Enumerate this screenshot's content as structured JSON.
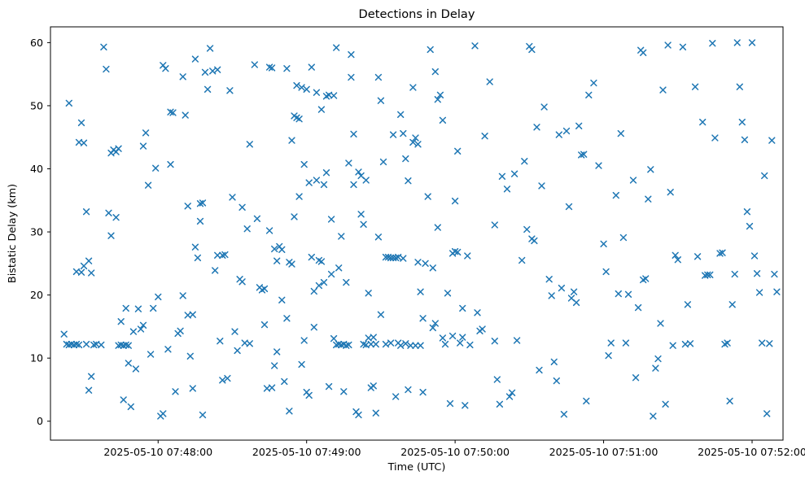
{
  "figure": {
    "background": "#ffffff"
  },
  "chart_data": {
    "type": "scatter",
    "title": "Detections in Delay",
    "xlabel": "Time (UTC)",
    "ylabel": "Bistatic Delay (km)",
    "marker": "x",
    "marker_color": "#1f77b4",
    "grid": false,
    "legend": null,
    "x_axis": {
      "unit": "seconds after 2025-05-10 07:47:00 UTC",
      "range_seconds": [
        16.5,
        312.5
      ],
      "tick_seconds": [
        60,
        120,
        180,
        240,
        300
      ],
      "tick_labels": [
        "2025-05-10 07:48:00",
        "2025-05-10 07:49:00",
        "2025-05-10 07:50:00",
        "2025-05-10 07:51:00",
        "2025-05-10 07:52:00"
      ]
    },
    "y_axis": {
      "ticks": [
        0,
        10,
        20,
        30,
        40,
        50,
        60
      ],
      "tick_labels": [
        "0",
        "10",
        "20",
        "30",
        "40",
        "50",
        "60"
      ],
      "range": [
        -3,
        62.5
      ]
    },
    "points": [
      [
        22,
        13.8
      ],
      [
        23,
        12.2
      ],
      [
        24,
        50.4
      ],
      [
        24,
        12.1
      ],
      [
        25,
        12.2
      ],
      [
        26,
        12.1
      ],
      [
        27,
        12.2
      ],
      [
        27,
        23.7
      ],
      [
        28,
        44.2
      ],
      [
        28,
        12.1
      ],
      [
        29,
        47.3
      ],
      [
        29,
        23.6
      ],
      [
        30,
        44.1
      ],
      [
        30,
        24.6
      ],
      [
        31,
        33.2
      ],
      [
        31,
        12.2
      ],
      [
        32,
        25.4
      ],
      [
        32,
        4.9
      ],
      [
        33,
        23.5
      ],
      [
        33,
        7.1
      ],
      [
        34,
        12.1
      ],
      [
        35,
        12.2
      ],
      [
        37,
        12.1
      ],
      [
        38,
        59.3
      ],
      [
        39,
        55.8
      ],
      [
        40,
        33.0
      ],
      [
        41,
        29.4
      ],
      [
        41,
        42.5
      ],
      [
        42,
        43.0
      ],
      [
        43,
        42.7
      ],
      [
        43,
        32.3
      ],
      [
        44,
        12.0
      ],
      [
        44,
        43.2
      ],
      [
        45,
        12.1
      ],
      [
        45,
        15.8
      ],
      [
        46,
        12.0
      ],
      [
        46,
        3.4
      ],
      [
        47,
        17.9
      ],
      [
        47,
        12.1
      ],
      [
        48,
        9.2
      ],
      [
        48,
        12.0
      ],
      [
        49,
        2.3
      ],
      [
        50,
        14.2
      ],
      [
        51,
        8.3
      ],
      [
        52,
        17.8
      ],
      [
        53,
        14.6
      ],
      [
        54,
        15.2
      ],
      [
        54,
        43.6
      ],
      [
        55,
        45.7
      ],
      [
        56,
        37.4
      ],
      [
        57,
        10.6
      ],
      [
        58,
        17.9
      ],
      [
        59,
        40.1
      ],
      [
        60,
        19.7
      ],
      [
        61,
        0.8
      ],
      [
        62,
        56.4
      ],
      [
        62,
        1.2
      ],
      [
        63,
        55.9
      ],
      [
        64,
        11.4
      ],
      [
        65,
        49.0
      ],
      [
        65,
        40.7
      ],
      [
        66,
        48.9
      ],
      [
        67,
        4.7
      ],
      [
        68,
        13.9
      ],
      [
        69,
        14.3
      ],
      [
        70,
        54.6
      ],
      [
        70,
        19.9
      ],
      [
        71,
        48.5
      ],
      [
        72,
        34.1
      ],
      [
        72,
        16.8
      ],
      [
        73,
        10.3
      ],
      [
        74,
        16.9
      ],
      [
        74,
        5.2
      ],
      [
        75,
        57.4
      ],
      [
        75,
        27.6
      ],
      [
        76,
        25.9
      ],
      [
        77,
        34.5
      ],
      [
        77,
        31.7
      ],
      [
        78,
        34.6
      ],
      [
        78,
        1.0
      ],
      [
        79,
        55.3
      ],
      [
        80,
        52.6
      ],
      [
        81,
        59.1
      ],
      [
        82,
        55.5
      ],
      [
        83,
        23.9
      ],
      [
        84,
        55.7
      ],
      [
        84,
        26.3
      ],
      [
        85,
        12.7
      ],
      [
        86,
        26.3
      ],
      [
        86,
        6.5
      ],
      [
        87,
        26.4
      ],
      [
        88,
        6.8
      ],
      [
        89,
        52.4
      ],
      [
        90,
        35.5
      ],
      [
        91,
        14.2
      ],
      [
        92,
        11.2
      ],
      [
        93,
        22.5
      ],
      [
        94,
        22.1
      ],
      [
        94,
        33.9
      ],
      [
        95,
        12.4
      ],
      [
        96,
        30.5
      ],
      [
        97,
        43.9
      ],
      [
        97,
        12.3
      ],
      [
        99,
        56.5
      ],
      [
        100,
        32.1
      ],
      [
        101,
        21.2
      ],
      [
        102,
        20.8
      ],
      [
        103,
        21.0
      ],
      [
        103,
        15.3
      ],
      [
        104,
        5.2
      ],
      [
        105,
        30.2
      ],
      [
        105,
        56.1
      ],
      [
        106,
        5.3
      ],
      [
        106,
        56.0
      ],
      [
        107,
        8.8
      ],
      [
        107,
        27.3
      ],
      [
        108,
        25.4
      ],
      [
        108,
        11.0
      ],
      [
        109,
        27.7
      ],
      [
        110,
        27.2
      ],
      [
        110,
        19.2
      ],
      [
        111,
        6.3
      ],
      [
        112,
        16.3
      ],
      [
        112,
        55.9
      ],
      [
        113,
        25.2
      ],
      [
        113,
        1.6
      ],
      [
        114,
        24.9
      ],
      [
        114,
        44.5
      ],
      [
        115,
        48.4
      ],
      [
        115,
        32.4
      ],
      [
        116,
        48.1
      ],
      [
        116,
        53.2
      ],
      [
        117,
        47.9
      ],
      [
        117,
        35.6
      ],
      [
        118,
        9.0
      ],
      [
        118,
        52.9
      ],
      [
        119,
        40.7
      ],
      [
        119,
        12.8
      ],
      [
        120,
        52.6
      ],
      [
        120,
        4.6
      ],
      [
        121,
        4.1
      ],
      [
        121,
        37.8
      ],
      [
        122,
        56.1
      ],
      [
        122,
        26.0
      ],
      [
        123,
        14.9
      ],
      [
        123,
        20.6
      ],
      [
        124,
        38.2
      ],
      [
        124,
        52.1
      ],
      [
        125,
        25.5
      ],
      [
        125,
        21.5
      ],
      [
        126,
        25.3
      ],
      [
        126,
        49.4
      ],
      [
        127,
        22.0
      ],
      [
        127,
        37.5
      ],
      [
        128,
        39.4
      ],
      [
        128,
        51.5
      ],
      [
        129,
        5.5
      ],
      [
        129,
        51.7
      ],
      [
        130,
        23.3
      ],
      [
        130,
        32.0
      ],
      [
        131,
        51.6
      ],
      [
        131,
        13.1
      ],
      [
        132,
        59.2
      ],
      [
        132,
        12.1
      ],
      [
        133,
        24.3
      ],
      [
        133,
        12.2
      ],
      [
        134,
        29.3
      ],
      [
        134,
        12.1
      ],
      [
        135,
        4.7
      ],
      [
        135,
        12.2
      ],
      [
        136,
        22.0
      ],
      [
        136,
        12.0
      ],
      [
        137,
        40.9
      ],
      [
        137,
        12.1
      ],
      [
        138,
        58.1
      ],
      [
        138,
        54.5
      ],
      [
        139,
        37.5
      ],
      [
        139,
        45.5
      ],
      [
        140,
        1.5
      ],
      [
        141,
        39.5
      ],
      [
        141,
        1.0
      ],
      [
        142,
        38.9
      ],
      [
        142,
        32.8
      ],
      [
        143,
        31.2
      ],
      [
        143,
        12.2
      ],
      [
        144,
        38.2
      ],
      [
        144,
        12.1
      ],
      [
        145,
        20.3
      ],
      [
        145,
        13.2
      ],
      [
        146,
        5.3
      ],
      [
        146,
        12.2
      ],
      [
        147,
        5.6
      ],
      [
        147,
        13.3
      ],
      [
        148,
        1.3
      ],
      [
        148,
        12.2
      ],
      [
        149,
        54.5
      ],
      [
        149,
        29.2
      ],
      [
        150,
        16.9
      ],
      [
        150,
        50.8
      ],
      [
        151,
        41.1
      ],
      [
        152,
        26.0
      ],
      [
        152,
        12.2
      ],
      [
        153,
        26.0
      ],
      [
        154,
        25.9
      ],
      [
        154,
        12.4
      ],
      [
        155,
        25.9
      ],
      [
        155,
        45.4
      ],
      [
        156,
        25.9
      ],
      [
        156,
        3.9
      ],
      [
        157,
        12.4
      ],
      [
        157,
        26.0
      ],
      [
        158,
        12.0
      ],
      [
        158,
        48.6
      ],
      [
        159,
        45.6
      ],
      [
        159,
        25.8
      ],
      [
        160,
        12.3
      ],
      [
        160,
        41.6
      ],
      [
        161,
        5.0
      ],
      [
        161,
        38.1
      ],
      [
        162,
        12.0
      ],
      [
        163,
        44.2
      ],
      [
        163,
        52.9
      ],
      [
        164,
        12.0
      ],
      [
        164,
        44.9
      ],
      [
        165,
        43.9
      ],
      [
        165,
        25.2
      ],
      [
        166,
        12.0
      ],
      [
        166,
        20.5
      ],
      [
        167,
        4.6
      ],
      [
        167,
        16.3
      ],
      [
        168,
        25.0
      ],
      [
        169,
        35.6
      ],
      [
        170,
        58.9
      ],
      [
        171,
        24.3
      ],
      [
        171,
        14.8
      ],
      [
        172,
        55.4
      ],
      [
        172,
        15.5
      ],
      [
        173,
        51.0
      ],
      [
        173,
        30.7
      ],
      [
        174,
        51.7
      ],
      [
        175,
        47.7
      ],
      [
        175,
        13.2
      ],
      [
        176,
        12.2
      ],
      [
        177,
        20.3
      ],
      [
        178,
        2.8
      ],
      [
        179,
        26.6
      ],
      [
        179,
        13.5
      ],
      [
        180,
        26.9
      ],
      [
        180,
        34.9
      ],
      [
        181,
        26.8
      ],
      [
        181,
        42.8
      ],
      [
        182,
        12.4
      ],
      [
        183,
        13.3
      ],
      [
        183,
        17.9
      ],
      [
        184,
        2.5
      ],
      [
        185,
        26.2
      ],
      [
        186,
        12.1
      ],
      [
        188,
        59.5
      ],
      [
        189,
        17.2
      ],
      [
        190,
        14.3
      ],
      [
        191,
        14.6
      ],
      [
        192,
        45.2
      ],
      [
        194,
        53.8
      ],
      [
        196,
        31.1
      ],
      [
        196,
        12.7
      ],
      [
        197,
        6.6
      ],
      [
        198,
        2.7
      ],
      [
        199,
        38.8
      ],
      [
        201,
        36.8
      ],
      [
        202,
        3.9
      ],
      [
        203,
        4.5
      ],
      [
        204,
        39.2
      ],
      [
        205,
        12.8
      ],
      [
        207,
        25.5
      ],
      [
        208,
        41.2
      ],
      [
        209,
        30.4
      ],
      [
        210,
        59.4
      ],
      [
        211,
        58.9
      ],
      [
        211,
        28.9
      ],
      [
        212,
        28.6
      ],
      [
        213,
        46.6
      ],
      [
        214,
        8.1
      ],
      [
        215,
        37.3
      ],
      [
        216,
        49.8
      ],
      [
        218,
        22.5
      ],
      [
        219,
        19.9
      ],
      [
        220,
        9.4
      ],
      [
        221,
        6.4
      ],
      [
        222,
        45.4
      ],
      [
        223,
        21.1
      ],
      [
        224,
        1.1
      ],
      [
        225,
        46.0
      ],
      [
        226,
        34.0
      ],
      [
        227,
        19.5
      ],
      [
        228,
        20.5
      ],
      [
        229,
        18.8
      ],
      [
        230,
        46.8
      ],
      [
        231,
        42.2
      ],
      [
        232,
        42.3
      ],
      [
        233,
        3.2
      ],
      [
        234,
        51.7
      ],
      [
        236,
        53.6
      ],
      [
        238,
        40.5
      ],
      [
        240,
        28.1
      ],
      [
        241,
        23.7
      ],
      [
        242,
        10.4
      ],
      [
        243,
        12.4
      ],
      [
        245,
        35.8
      ],
      [
        246,
        20.2
      ],
      [
        247,
        45.6
      ],
      [
        248,
        29.1
      ],
      [
        249,
        12.4
      ],
      [
        250,
        20.1
      ],
      [
        252,
        38.2
      ],
      [
        253,
        6.9
      ],
      [
        254,
        18.0
      ],
      [
        255,
        58.8
      ],
      [
        256,
        58.4
      ],
      [
        256,
        22.4
      ],
      [
        257,
        22.6
      ],
      [
        258,
        35.2
      ],
      [
        259,
        39.9
      ],
      [
        260,
        0.8
      ],
      [
        261,
        8.4
      ],
      [
        262,
        9.9
      ],
      [
        263,
        15.5
      ],
      [
        264,
        52.5
      ],
      [
        265,
        2.7
      ],
      [
        266,
        59.6
      ],
      [
        267,
        36.3
      ],
      [
        268,
        12.0
      ],
      [
        269,
        26.3
      ],
      [
        270,
        25.6
      ],
      [
        272,
        59.3
      ],
      [
        273,
        12.2
      ],
      [
        274,
        18.5
      ],
      [
        275,
        12.3
      ],
      [
        277,
        53.0
      ],
      [
        278,
        26.1
      ],
      [
        280,
        47.4
      ],
      [
        281,
        23.1
      ],
      [
        282,
        23.2
      ],
      [
        283,
        23.2
      ],
      [
        284,
        59.9
      ],
      [
        285,
        44.9
      ],
      [
        287,
        26.6
      ],
      [
        288,
        26.7
      ],
      [
        289,
        12.2
      ],
      [
        290,
        12.4
      ],
      [
        291,
        3.2
      ],
      [
        292,
        18.5
      ],
      [
        293,
        23.3
      ],
      [
        294,
        60.0
      ],
      [
        295,
        53.0
      ],
      [
        296,
        47.4
      ],
      [
        297,
        44.6
      ],
      [
        298,
        33.2
      ],
      [
        299,
        30.9
      ],
      [
        300,
        60.0
      ],
      [
        301,
        26.2
      ],
      [
        302,
        23.4
      ],
      [
        303,
        20.4
      ],
      [
        304,
        12.4
      ],
      [
        305,
        38.9
      ],
      [
        306,
        1.2
      ],
      [
        307,
        12.3
      ],
      [
        308,
        44.5
      ],
      [
        309,
        23.3
      ],
      [
        310,
        20.5
      ]
    ]
  }
}
